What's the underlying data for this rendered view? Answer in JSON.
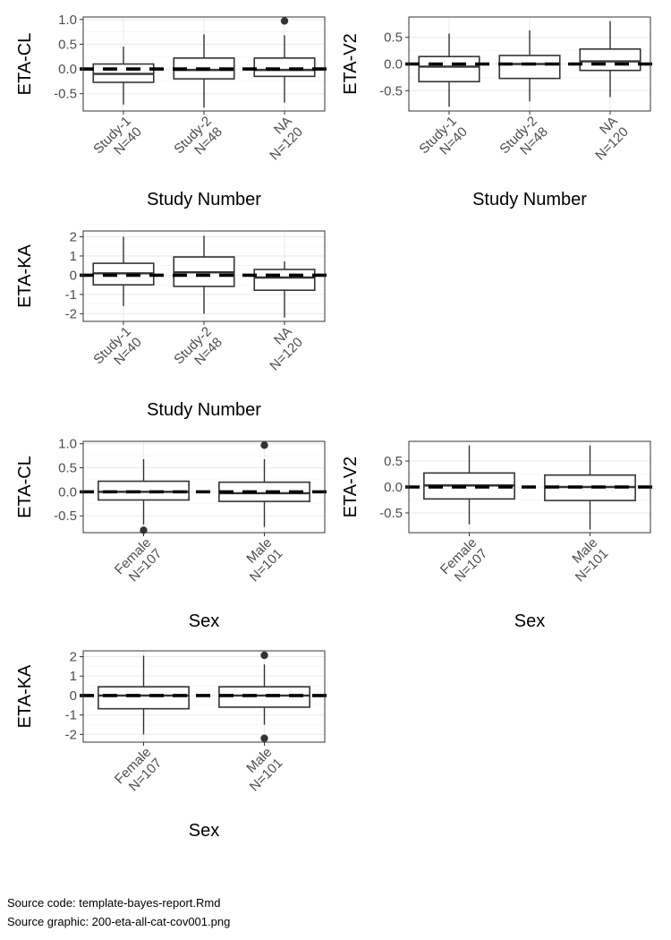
{
  "chart_data": [
    {
      "type": "boxplot",
      "ylabel": "ETA-CL",
      "xlabel": "Study Number",
      "ylim": [
        -0.85,
        1.05
      ],
      "yticks": [
        -0.5,
        0.0,
        0.5,
        1.0
      ],
      "yticklabels": [
        "-0.5",
        "0.0",
        "0.5",
        "1.0"
      ],
      "categories": [
        [
          "Study-1",
          "N=40"
        ],
        [
          "Study-2",
          "N=48"
        ],
        [
          "NA",
          "N=120"
        ]
      ],
      "boxes": [
        {
          "q1": -0.27,
          "median": -0.1,
          "q3": 0.1,
          "whisker_low": -0.72,
          "whisker_high": 0.45,
          "outliers": []
        },
        {
          "q1": -0.2,
          "median": -0.02,
          "q3": 0.22,
          "whisker_low": -0.78,
          "whisker_high": 0.7,
          "outliers": []
        },
        {
          "q1": -0.15,
          "median": -0.02,
          "q3": 0.22,
          "whisker_low": -0.68,
          "whisker_high": 0.68,
          "outliers": [
            0.97
          ]
        }
      ],
      "reference_line": 0,
      "grid": true
    },
    {
      "type": "boxplot",
      "ylabel": "ETA-V2",
      "xlabel": "Study Number",
      "ylim": [
        -0.88,
        0.88
      ],
      "yticks": [
        -0.5,
        0.0,
        0.5
      ],
      "yticklabels": [
        "-0.5",
        "0.0",
        "0.5"
      ],
      "categories": [
        [
          "Study-1",
          "N=40"
        ],
        [
          "Study-2",
          "N=48"
        ],
        [
          "NA",
          "N=120"
        ]
      ],
      "boxes": [
        {
          "q1": -0.33,
          "median": -0.05,
          "q3": 0.14,
          "whisker_low": -0.8,
          "whisker_high": 0.57,
          "outliers": []
        },
        {
          "q1": -0.27,
          "median": 0.0,
          "q3": 0.16,
          "whisker_low": -0.7,
          "whisker_high": 0.63,
          "outliers": []
        },
        {
          "q1": -0.12,
          "median": 0.05,
          "q3": 0.28,
          "whisker_low": -0.62,
          "whisker_high": 0.8,
          "outliers": []
        }
      ],
      "reference_line": 0,
      "grid": true
    },
    {
      "type": "boxplot",
      "ylabel": "ETA-KA",
      "xlabel": "Study Number",
      "ylim": [
        -2.4,
        2.3
      ],
      "yticks": [
        -2,
        -1,
        0,
        1,
        2
      ],
      "yticklabels": [
        "-2",
        "-1",
        "0",
        "1",
        "2"
      ],
      "categories": [
        [
          "Study-1",
          "N=40"
        ],
        [
          "Study-2",
          "N=48"
        ],
        [
          "NA",
          "N=120"
        ]
      ],
      "boxes": [
        {
          "q1": -0.5,
          "median": 0.1,
          "q3": 0.62,
          "whisker_low": -1.6,
          "whisker_high": 2.0,
          "outliers": []
        },
        {
          "q1": -0.58,
          "median": 0.15,
          "q3": 0.95,
          "whisker_low": -2.0,
          "whisker_high": 2.05,
          "outliers": []
        },
        {
          "q1": -0.78,
          "median": -0.12,
          "q3": 0.3,
          "whisker_low": -2.2,
          "whisker_high": 0.72,
          "outliers": []
        }
      ],
      "reference_line": 0,
      "grid": true
    },
    {
      "type": "boxplot",
      "ylabel": "ETA-CL",
      "xlabel": "Sex",
      "ylim": [
        -0.85,
        1.05
      ],
      "yticks": [
        -0.5,
        0.0,
        0.5,
        1.0
      ],
      "yticklabels": [
        "-0.5",
        "0.0",
        "0.5",
        "1.0"
      ],
      "categories": [
        [
          "Female",
          "N=107"
        ],
        [
          "Male",
          "N=101"
        ]
      ],
      "boxes": [
        {
          "q1": -0.17,
          "median": 0.0,
          "q3": 0.22,
          "whisker_low": -0.68,
          "whisker_high": 0.68,
          "outliers": [
            -0.8
          ]
        },
        {
          "q1": -0.2,
          "median": -0.03,
          "q3": 0.2,
          "whisker_low": -0.73,
          "whisker_high": 0.68,
          "outliers": [
            0.97
          ]
        }
      ],
      "reference_line": 0,
      "grid": true
    },
    {
      "type": "boxplot",
      "ylabel": "ETA-V2",
      "xlabel": "Sex",
      "ylim": [
        -0.88,
        0.88
      ],
      "yticks": [
        -0.5,
        0.0,
        0.5
      ],
      "yticklabels": [
        "-0.5",
        "0.0",
        "0.5"
      ],
      "categories": [
        [
          "Female",
          "N=107"
        ],
        [
          "Male",
          "N=101"
        ]
      ],
      "boxes": [
        {
          "q1": -0.23,
          "median": 0.03,
          "q3": 0.27,
          "whisker_low": -0.72,
          "whisker_high": 0.8,
          "outliers": []
        },
        {
          "q1": -0.26,
          "median": 0.0,
          "q3": 0.23,
          "whisker_low": -0.82,
          "whisker_high": 0.8,
          "outliers": []
        }
      ],
      "reference_line": 0,
      "grid": true
    },
    {
      "type": "boxplot",
      "ylabel": "ETA-KA",
      "xlabel": "Sex",
      "ylim": [
        -2.4,
        2.3
      ],
      "yticks": [
        -2,
        -1,
        0,
        1,
        2
      ],
      "yticklabels": [
        "-2",
        "-1",
        "0",
        "1",
        "2"
      ],
      "categories": [
        [
          "Female",
          "N=107"
        ],
        [
          "Male",
          "N=101"
        ]
      ],
      "boxes": [
        {
          "q1": -0.68,
          "median": 0.0,
          "q3": 0.45,
          "whisker_low": -2.0,
          "whisker_high": 2.05,
          "outliers": []
        },
        {
          "q1": -0.6,
          "median": 0.0,
          "q3": 0.45,
          "whisker_low": -1.5,
          "whisker_high": 1.6,
          "outliers": [
            2.07,
            -2.2
          ]
        }
      ],
      "reference_line": 0,
      "grid": true
    }
  ],
  "footer": {
    "source_code": "Source code: template-bayes-report.Rmd",
    "source_graphic": "Source graphic: 200-eta-all-cat-cov001.png"
  }
}
